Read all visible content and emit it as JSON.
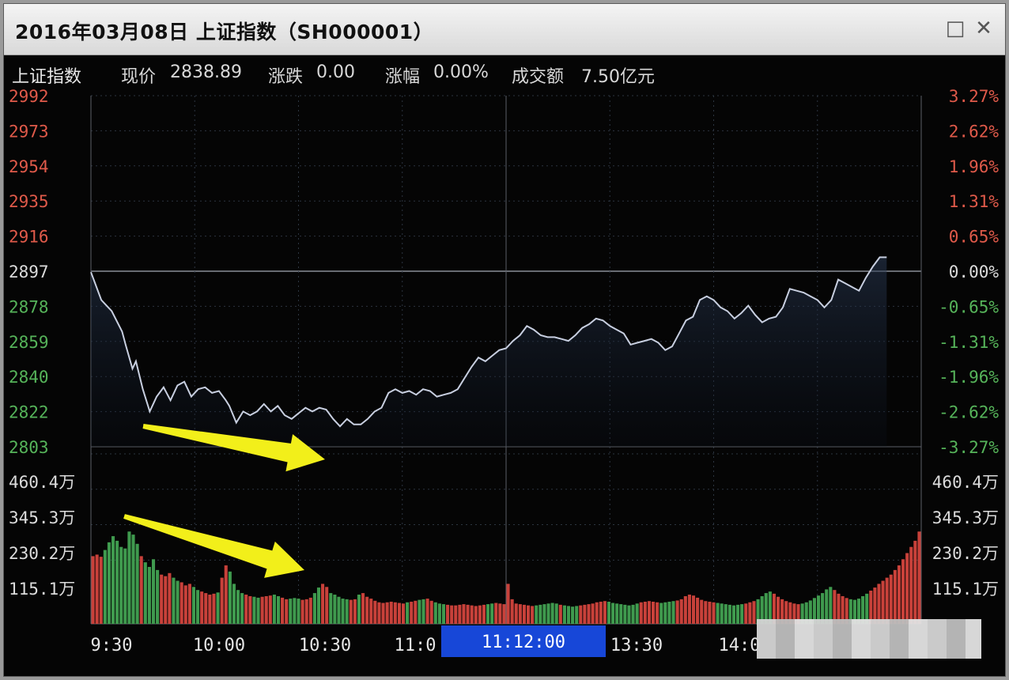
{
  "window": {
    "title": "2016年03月08日  上证指数（SH000001）",
    "restore_glyph": "□",
    "close_glyph": "✕"
  },
  "infobar": {
    "name": "上证指数",
    "price_label": "现价",
    "price_value": "2838.89",
    "change_label": "涨跌",
    "change_value": "0.00",
    "pct_label": "涨幅",
    "pct_value": "0.00%",
    "turnover_label": "成交额",
    "turnover_value": "7.50亿元"
  },
  "colors": {
    "up": "#e05a4a",
    "down": "#56b45a",
    "neutral": "#dcdcdc",
    "line": "#c8cfe0",
    "grid": "#2c3540",
    "arrow": "#f2ef1a",
    "bar_red": "#c8413a",
    "bar_green": "#3f9a4e",
    "time_highlight": "#1747d8"
  },
  "chart_data": {
    "type": "line",
    "title": "上证指数",
    "date": "2016年03月08日",
    "prev_close": 2897,
    "ylim": [
      2803,
      2992
    ],
    "price_ticks": [
      "2992",
      "2973",
      "2954",
      "2935",
      "2916",
      "2897",
      "2878",
      "2859",
      "2840",
      "2822",
      "2803"
    ],
    "pct_ticks": [
      "3.27%",
      "2.62%",
      "1.96%",
      "1.31%",
      "0.65%",
      "0.00%",
      "-0.65%",
      "-1.31%",
      "-1.96%",
      "-2.62%",
      "-3.27%"
    ],
    "time_ticks": [
      "9:30",
      "10:00",
      "10:30",
      "11:0",
      "13:30",
      "14:0"
    ],
    "crosshair_time": "11:12:00",
    "minutes_total": 240,
    "price_series": [
      [
        0,
        2897
      ],
      [
        3,
        2882
      ],
      [
        6,
        2876
      ],
      [
        9,
        2865
      ],
      [
        10,
        2858
      ],
      [
        12,
        2845
      ],
      [
        13,
        2849
      ],
      [
        15,
        2834
      ],
      [
        17,
        2822
      ],
      [
        19,
        2830
      ],
      [
        21,
        2835
      ],
      [
        23,
        2828
      ],
      [
        25,
        2836
      ],
      [
        27,
        2838
      ],
      [
        29,
        2830
      ],
      [
        31,
        2834
      ],
      [
        33,
        2835
      ],
      [
        35,
        2832
      ],
      [
        37,
        2833
      ],
      [
        39,
        2828
      ],
      [
        40,
        2825
      ],
      [
        42,
        2816
      ],
      [
        44,
        2822
      ],
      [
        46,
        2820
      ],
      [
        48,
        2822
      ],
      [
        50,
        2826
      ],
      [
        52,
        2822
      ],
      [
        54,
        2825
      ],
      [
        56,
        2820
      ],
      [
        58,
        2818
      ],
      [
        60,
        2821
      ],
      [
        62,
        2824
      ],
      [
        64,
        2822
      ],
      [
        66,
        2824
      ],
      [
        68,
        2823
      ],
      [
        70,
        2818
      ],
      [
        72,
        2814
      ],
      [
        74,
        2818
      ],
      [
        76,
        2815
      ],
      [
        78,
        2815
      ],
      [
        80,
        2818
      ],
      [
        82,
        2822
      ],
      [
        84,
        2824
      ],
      [
        86,
        2832
      ],
      [
        88,
        2834
      ],
      [
        90,
        2832
      ],
      [
        92,
        2833
      ],
      [
        94,
        2831
      ],
      [
        96,
        2834
      ],
      [
        98,
        2833
      ],
      [
        100,
        2830
      ],
      [
        102,
        2831
      ],
      [
        104,
        2832
      ],
      [
        106,
        2834
      ],
      [
        108,
        2840
      ],
      [
        110,
        2846
      ],
      [
        112,
        2851
      ],
      [
        114,
        2849
      ],
      [
        116,
        2852
      ],
      [
        118,
        2855
      ],
      [
        120,
        2856
      ],
      [
        122,
        2860
      ],
      [
        124,
        2863
      ],
      [
        126,
        2868
      ],
      [
        128,
        2866
      ],
      [
        130,
        2863
      ],
      [
        132,
        2862
      ],
      [
        134,
        2862
      ],
      [
        136,
        2861
      ],
      [
        138,
        2860
      ],
      [
        140,
        2863
      ],
      [
        142,
        2867
      ],
      [
        144,
        2869
      ],
      [
        146,
        2872
      ],
      [
        148,
        2871
      ],
      [
        150,
        2868
      ],
      [
        152,
        2866
      ],
      [
        154,
        2864
      ],
      [
        156,
        2858
      ],
      [
        158,
        2859
      ],
      [
        160,
        2860
      ],
      [
        162,
        2861
      ],
      [
        164,
        2859
      ],
      [
        166,
        2855
      ],
      [
        168,
        2857
      ],
      [
        170,
        2864
      ],
      [
        172,
        2871
      ],
      [
        174,
        2873
      ],
      [
        176,
        2882
      ],
      [
        178,
        2884
      ],
      [
        180,
        2882
      ],
      [
        182,
        2878
      ],
      [
        184,
        2876
      ],
      [
        186,
        2872
      ],
      [
        188,
        2875
      ],
      [
        190,
        2879
      ],
      [
        192,
        2874
      ],
      [
        194,
        2870
      ],
      [
        196,
        2872
      ],
      [
        198,
        2873
      ],
      [
        200,
        2878
      ],
      [
        202,
        2888
      ],
      [
        204,
        2887
      ],
      [
        206,
        2886
      ],
      [
        208,
        2884
      ],
      [
        210,
        2882
      ],
      [
        212,
        2878
      ],
      [
        214,
        2882
      ],
      [
        216,
        2893
      ],
      [
        218,
        2891
      ],
      [
        220,
        2889
      ],
      [
        222,
        2887
      ],
      [
        224,
        2894
      ],
      [
        226,
        2900
      ],
      [
        228,
        2905
      ],
      [
        230,
        2905
      ]
    ],
    "volume_ticks": [
      "460.4万",
      "345.3万",
      "230.2万",
      "115.1万"
    ],
    "volume_max": 575.5,
    "volume_series": [
      220,
      225,
      218,
      240,
      265,
      285,
      270,
      250,
      245,
      300,
      290,
      260,
      220,
      200,
      185,
      210,
      175,
      160,
      155,
      165,
      150,
      140,
      135,
      125,
      130,
      120,
      110,
      105,
      100,
      95,
      98,
      102,
      150,
      190,
      170,
      130,
      110,
      100,
      95,
      90,
      88,
      85,
      88,
      90,
      92,
      95,
      90,
      85,
      80,
      82,
      84,
      82,
      78,
      80,
      85,
      100,
      118,
      130,
      120,
      100,
      95,
      88,
      82,
      80,
      78,
      80,
      95,
      100,
      88,
      82,
      75,
      70,
      68,
      70,
      72,
      70,
      68,
      66,
      70,
      72,
      75,
      78,
      80,
      82,
      75,
      70,
      66,
      64,
      62,
      60,
      60,
      62,
      64,
      62,
      60,
      58,
      60,
      62,
      64,
      66,
      68,
      66,
      64,
      130,
      80,
      66,
      64,
      62,
      60,
      58,
      60,
      62,
      64,
      66,
      68,
      66,
      62,
      60,
      58,
      56,
      58,
      60,
      62,
      64,
      66,
      70,
      72,
      74,
      72,
      68,
      66,
      64,
      62,
      60,
      62,
      66,
      70,
      72,
      74,
      72,
      70,
      68,
      70,
      72,
      74,
      76,
      80,
      90,
      95,
      92,
      85,
      78,
      74,
      72,
      70,
      68,
      66,
      64,
      62,
      60,
      62,
      64,
      66,
      70,
      74,
      80,
      90,
      100,
      105,
      98,
      88,
      80,
      74,
      70,
      66,
      64,
      66,
      70,
      76,
      84,
      92,
      100,
      112,
      120,
      110,
      98,
      90,
      84,
      80,
      78,
      82,
      90,
      98,
      108,
      118,
      130,
      140,
      150,
      160,
      175,
      190,
      210,
      230,
      250,
      270,
      300
    ]
  }
}
